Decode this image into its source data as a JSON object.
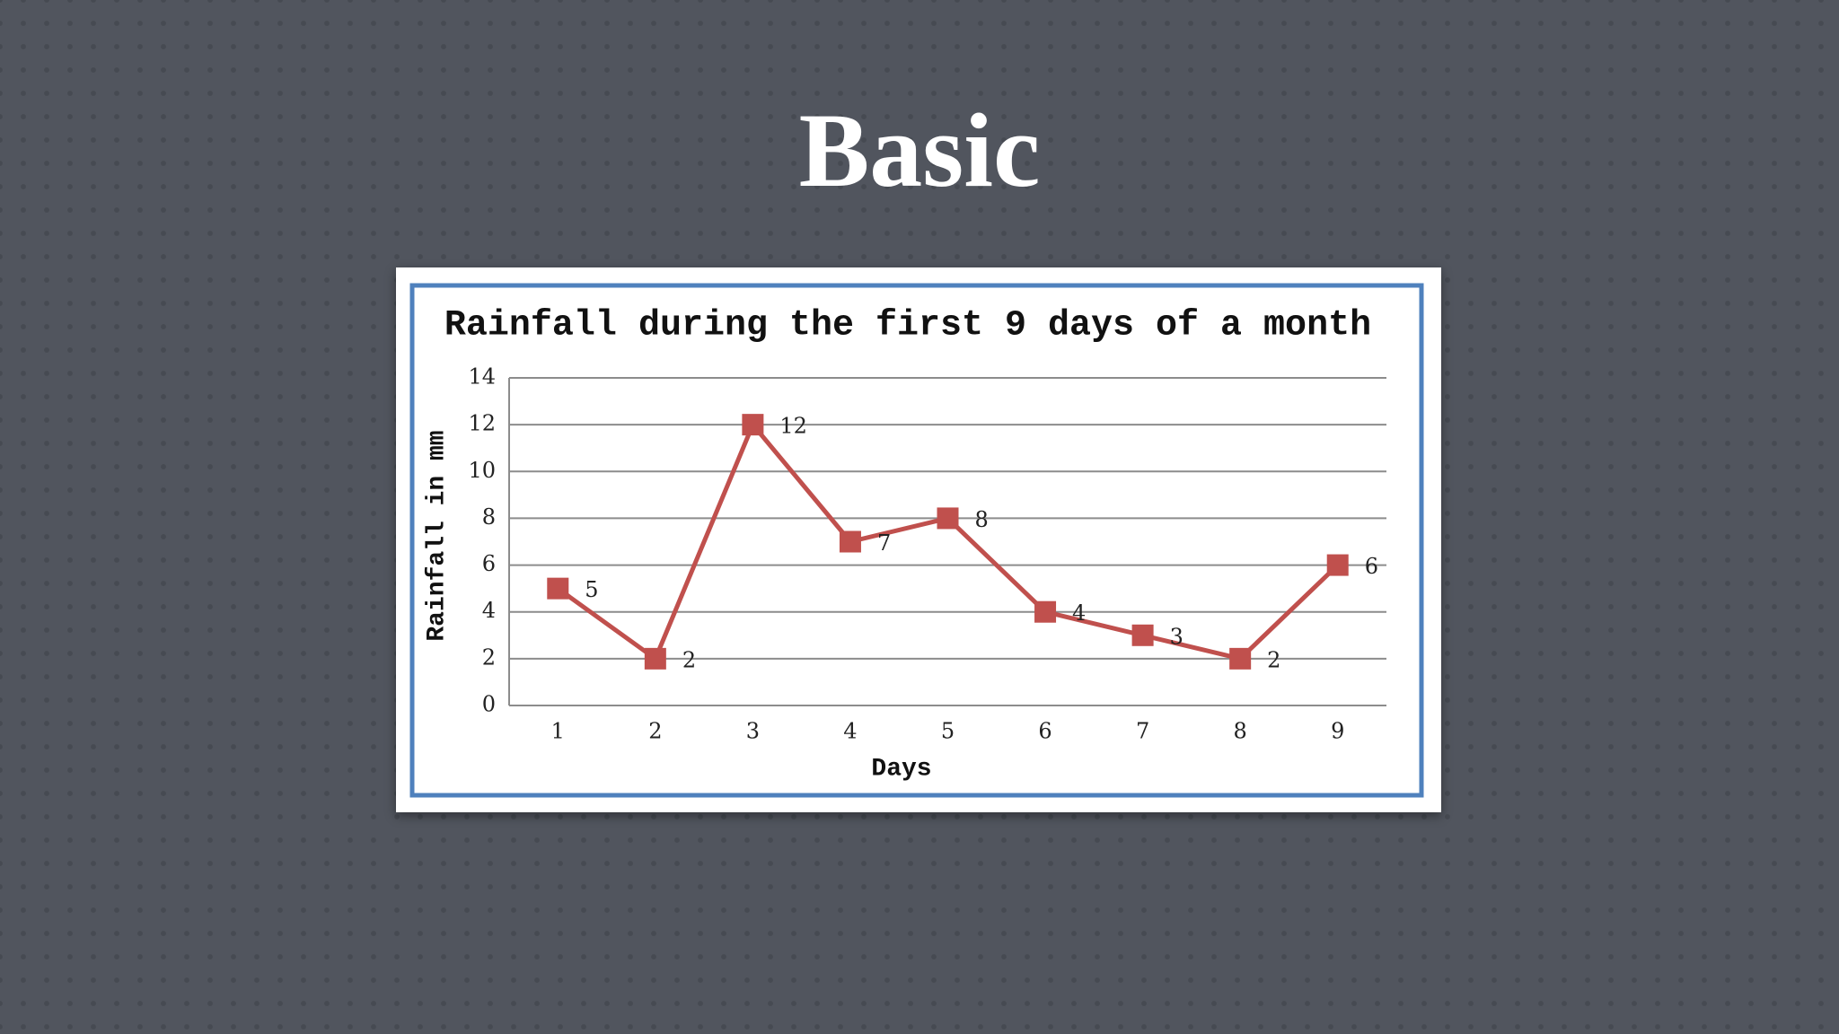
{
  "slide_title": "Basic",
  "chart_data": {
    "type": "line",
    "title": "Rainfall during the first 9 days of a month",
    "x_label": "Days",
    "y_label": "Rainfall in mm",
    "categories": [
      "1",
      "2",
      "3",
      "4",
      "5",
      "6",
      "7",
      "8",
      "9"
    ],
    "series": [
      {
        "name": "Rainfall",
        "color": "#c0504d",
        "values": [
          5,
          2,
          12,
          7,
          8,
          4,
          3,
          2,
          6
        ]
      }
    ],
    "ylim": [
      0,
      14
    ],
    "yticks": [
      0,
      2,
      4,
      6,
      8,
      10,
      12,
      14
    ],
    "grid": true
  }
}
